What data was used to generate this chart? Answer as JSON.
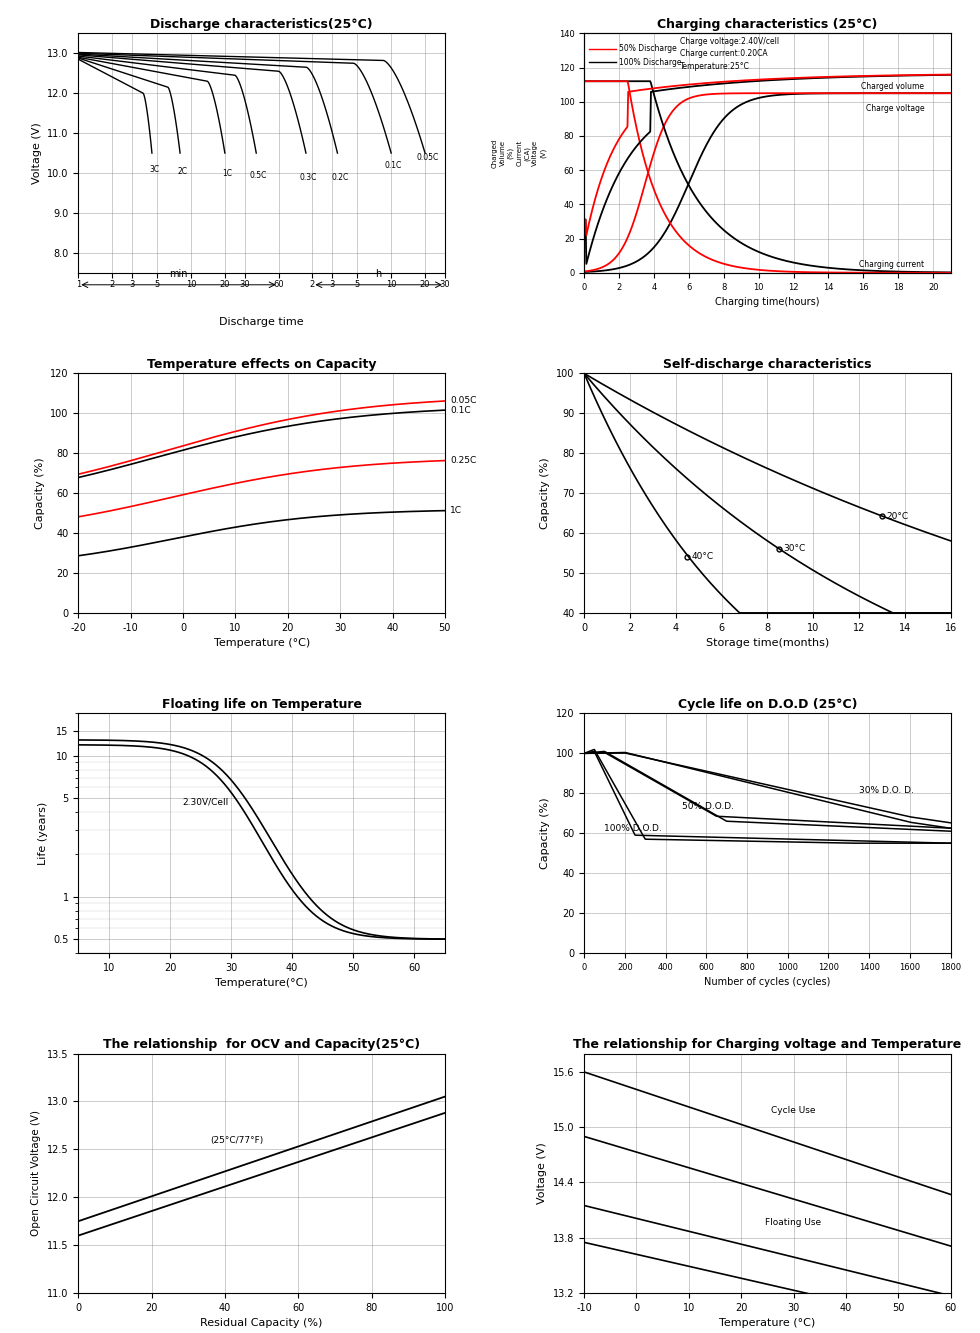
{
  "background_color": "#ffffff",
  "panel_titles": [
    "Discharge characteristics(25°C)",
    "Charging characteristics (25°C)",
    "Temperature effects on Capacity",
    "Self-discharge characteristics",
    "Floating life on Temperature",
    "Cycle life on D.O.D (25°C)",
    "The relationship  for OCV and Capacity(25°C)",
    "The relationship for Charging voltage and Temperature"
  ],
  "discharge": {
    "rates": [
      "3C",
      "2C",
      "1C",
      "0.5C",
      "0.3C",
      "0.2C",
      "0.1C",
      "0.05C"
    ],
    "ylabel": "Voltage (V)",
    "xlabel": "Discharge time",
    "yticks": [
      8.0,
      9.0,
      10.0,
      11.0,
      12.0,
      13.0
    ],
    "min_ticks": [
      1,
      2,
      3,
      5,
      10,
      20,
      30,
      60
    ],
    "h_ticks": [
      2,
      3,
      5,
      10,
      20,
      30
    ]
  },
  "charging": {
    "xlabel": "Charging time(hours)",
    "info_text": "Charge voltage:2.40V/cell\nCharge current:0.20CA\nTemperature:25°C",
    "legend_50": "50% Discharge",
    "legend_100": "100% Discharge",
    "label_charged_volume": "Charged volume",
    "label_charge_voltage": "Charge voltage",
    "label_charging_current": "Charging current"
  },
  "temp_capacity": {
    "ylabel": "Capacity (%)",
    "xlabel": "Temperature (°C)",
    "colors": [
      "red",
      "black",
      "red",
      "black"
    ],
    "yticks": [
      0,
      20,
      40,
      60,
      80,
      100,
      120
    ],
    "xticks": [
      -20,
      -10,
      0,
      10,
      20,
      30,
      40,
      50
    ]
  },
  "self_discharge": {
    "ylabel": "Capacity (%)",
    "xlabel": "Storage time(months)",
    "yticks": [
      40,
      50,
      60,
      70,
      80,
      90,
      100
    ],
    "xticks": [
      0,
      2,
      4,
      6,
      8,
      10,
      12,
      14,
      16
    ]
  },
  "float_life": {
    "ylabel": "Life (years)",
    "xlabel": "Temperature(°C)",
    "annotation": "2.30V/Cell",
    "yticks": [
      0.5,
      1,
      5,
      10,
      15
    ],
    "ytick_labels": [
      "0.5",
      "1",
      "5",
      "10",
      "15"
    ],
    "xticks": [
      10,
      20,
      30,
      40,
      50,
      60
    ]
  },
  "cycle_life": {
    "ylabel": "Capacity (%)",
    "xlabel": "Number of cycles (cycles)",
    "yticks": [
      0,
      20,
      40,
      60,
      80,
      100,
      120
    ],
    "xticks": [
      0,
      200,
      400,
      600,
      800,
      1000,
      1200,
      1400,
      1600,
      1800
    ]
  },
  "ocv": {
    "ylabel": "Open Circuit Voltage (V)",
    "xlabel": "Residual Capacity (%)",
    "annotation": "(25°C/77°F)",
    "yticks": [
      11.0,
      11.5,
      12.0,
      12.5,
      13.0,
      13.5
    ],
    "xticks": [
      0,
      20,
      40,
      60,
      80,
      100
    ]
  },
  "charge_voltage_temp": {
    "ylabel": "Voltage (V)",
    "xlabel": "Temperature (°C)",
    "yticks": [
      13.2,
      13.8,
      14.4,
      15.0,
      15.6
    ],
    "xticks": [
      -10,
      0,
      10,
      20,
      30,
      40,
      50,
      60
    ]
  }
}
